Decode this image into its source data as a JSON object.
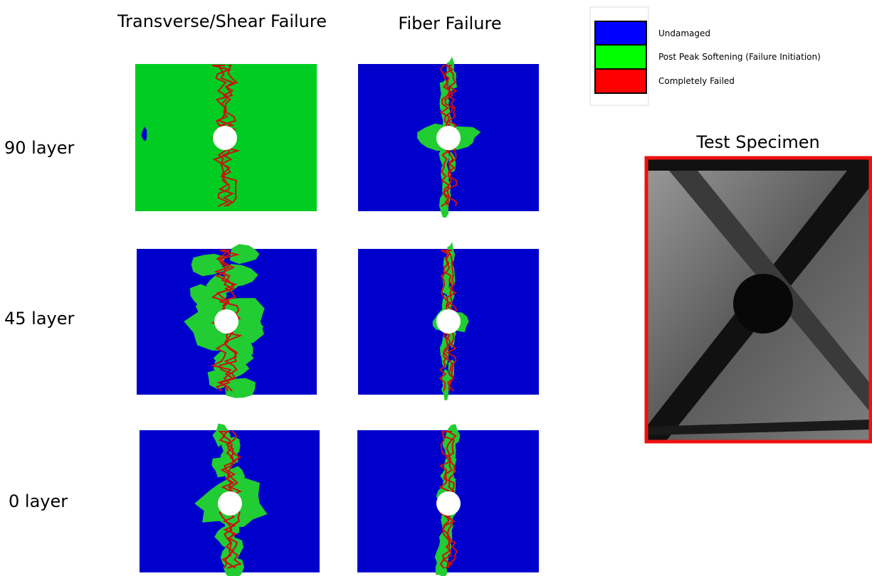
{
  "header": {
    "columns": [
      "Transverse/Shear Failure",
      "Fiber Failure"
    ]
  },
  "rows": [
    {
      "label": "90 layer"
    },
    {
      "label": "45 layer"
    },
    {
      "label": "0 layer"
    }
  ],
  "legend": {
    "items": [
      "Undamaged",
      "Post Peak Softening (Failure Initiation)",
      "Completely Failed"
    ]
  },
  "specimen": {
    "title": "Test Specimen"
  }
}
